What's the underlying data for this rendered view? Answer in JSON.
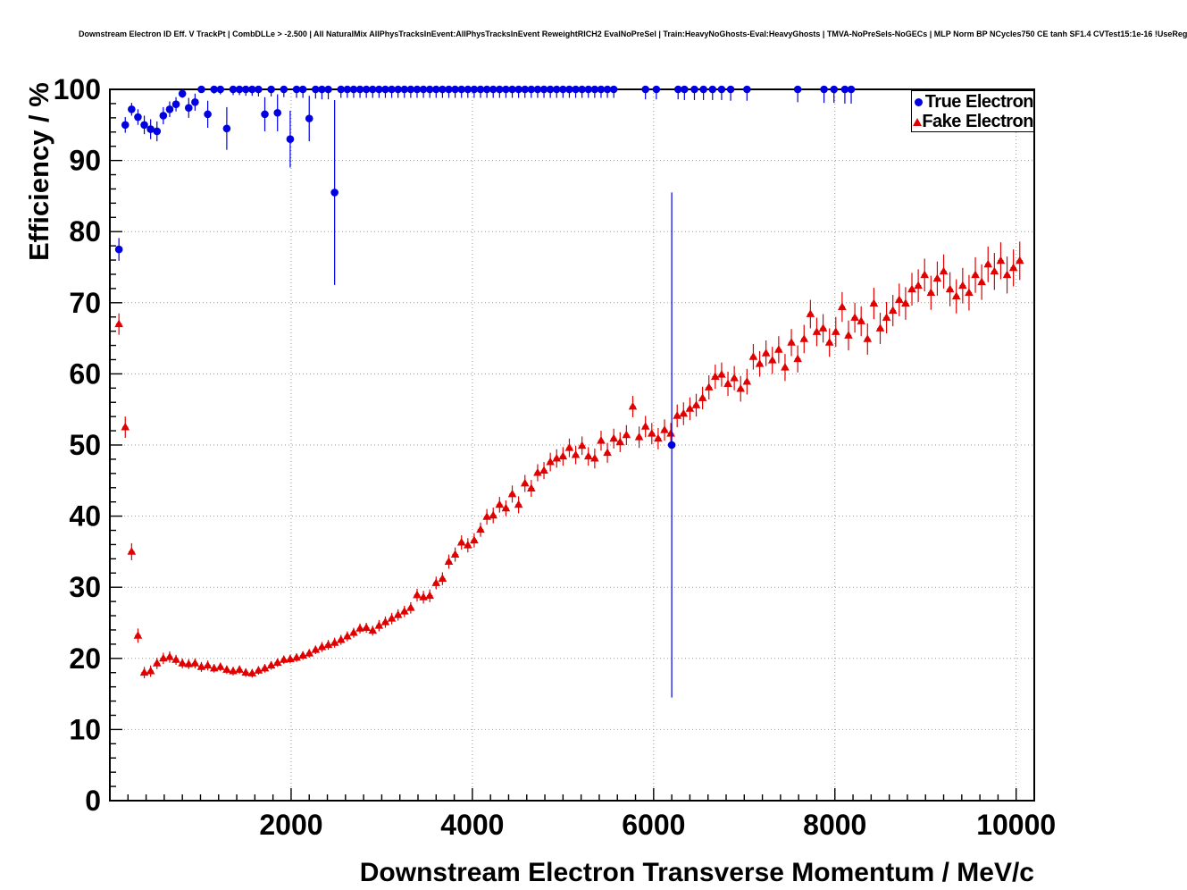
{
  "colors": {
    "true_electron": "#0000e0",
    "fake_electron": "#e00000",
    "grid": "#9a9a9a",
    "frame": "#000000",
    "background": "#ffffff"
  },
  "chart_data": {
    "type": "scatter",
    "title": "Downstream Electron ID Eff. V TrackPt | CombDLLe > -2.500 | All NaturalMix AllPhysTracksInEvent:AllPhysTracksInEvent ReweightRICH2 EvalNoPreSel | Train:HeavyNoGhosts-Eval:HeavyGhosts | TMVA-NoPreSels-NoGECs | MLP Norm BP NCycles750 CE tanh SF1.4 CVTest15:1e-16 !UseReg",
    "xlabel": "Downstream Electron Transverse Momentum / MeV/c",
    "ylabel": "Efficiency / %",
    "xlim": [
      0,
      10200
    ],
    "ylim": [
      0,
      100
    ],
    "x_ticks": [
      2000,
      4000,
      6000,
      8000,
      10000
    ],
    "y_ticks": [
      0,
      10,
      20,
      30,
      40,
      50,
      60,
      70,
      80,
      90,
      100
    ],
    "x_major_step": 2000,
    "x_minor_step": 200,
    "y_major_step": 10,
    "y_minor_step": 2,
    "grid_style": "dotted",
    "legend": {
      "position": "top-right",
      "entries": [
        {
          "label": "True Electron",
          "marker": "circle",
          "color": "#0000e0"
        },
        {
          "label": "Fake Electron",
          "marker": "triangle",
          "color": "#e00000"
        }
      ]
    },
    "series": [
      {
        "name": "True Electron",
        "marker": "circle",
        "color": "#0000e0",
        "x_error": 32,
        "points": [
          [
            100,
            77.5,
            1.6
          ],
          [
            170,
            95.0,
            1.1
          ],
          [
            240,
            97.2,
            0.9
          ],
          [
            310,
            96.1,
            1.1
          ],
          [
            380,
            95.0,
            1.3
          ],
          [
            450,
            94.4,
            1.4
          ],
          [
            520,
            94.1,
            1.4
          ],
          [
            590,
            96.3,
            1.2
          ],
          [
            660,
            97.2,
            1.1
          ],
          [
            730,
            97.9,
            1.0
          ],
          [
            800,
            99.4,
            0.6
          ],
          [
            870,
            97.4,
            1.4
          ],
          [
            940,
            98.2,
            1.2
          ],
          [
            1010,
            100,
            0.5
          ],
          [
            1080,
            96.5,
            1.9
          ],
          [
            1150,
            100,
            0.6
          ],
          [
            1220,
            100,
            0.7
          ],
          [
            1290,
            94.5,
            3.0
          ],
          [
            1360,
            100,
            0.8
          ],
          [
            1430,
            100,
            0.8
          ],
          [
            1500,
            100,
            0.9
          ],
          [
            1570,
            100,
            0.9
          ],
          [
            1640,
            100,
            1.0
          ],
          [
            1710,
            96.5,
            2.4
          ],
          [
            1780,
            100,
            1.0
          ],
          [
            1850,
            96.7,
            2.6
          ],
          [
            1920,
            100,
            1.1
          ],
          [
            1990,
            93.0,
            4.0
          ],
          [
            2060,
            100,
            1.2
          ],
          [
            2130,
            100,
            1.2
          ],
          [
            2200,
            95.9,
            3.2
          ],
          [
            2270,
            100,
            1.3
          ],
          [
            2340,
            100,
            1.4
          ],
          [
            2410,
            100,
            1.4
          ],
          [
            2480,
            85.5,
            13.0
          ],
          [
            2550,
            100,
            1.2
          ],
          [
            2620,
            100,
            1.2
          ],
          [
            2690,
            100,
            1.2
          ],
          [
            2760,
            100,
            1.2
          ],
          [
            2830,
            100,
            1.2
          ],
          [
            2900,
            100,
            1.2
          ],
          [
            2970,
            100,
            1.2
          ],
          [
            3040,
            100,
            1.2
          ],
          [
            3110,
            100,
            1.2
          ],
          [
            3180,
            100,
            1.2
          ],
          [
            3250,
            100,
            1.2
          ],
          [
            3320,
            100,
            1.2
          ],
          [
            3390,
            100,
            1.2
          ],
          [
            3460,
            100,
            1.2
          ],
          [
            3530,
            100,
            1.2
          ],
          [
            3600,
            100,
            1.2
          ],
          [
            3670,
            100,
            1.2
          ],
          [
            3740,
            100,
            1.2
          ],
          [
            3810,
            100,
            1.2
          ],
          [
            3880,
            100,
            1.2
          ],
          [
            3950,
            100,
            1.2
          ],
          [
            4020,
            100,
            1.2
          ],
          [
            4090,
            100,
            1.2
          ],
          [
            4160,
            100,
            1.2
          ],
          [
            4230,
            100,
            1.2
          ],
          [
            4300,
            100,
            1.2
          ],
          [
            4370,
            100,
            1.2
          ],
          [
            4440,
            100,
            1.2
          ],
          [
            4510,
            100,
            1.2
          ],
          [
            4580,
            100,
            1.2
          ],
          [
            4650,
            100,
            1.2
          ],
          [
            4720,
            100,
            1.2
          ],
          [
            4790,
            100,
            1.2
          ],
          [
            4860,
            100,
            1.2
          ],
          [
            4930,
            100,
            1.2
          ],
          [
            5000,
            100,
            1.2
          ],
          [
            5070,
            100,
            1.2
          ],
          [
            5140,
            100,
            1.2
          ],
          [
            5210,
            100,
            1.2
          ],
          [
            5280,
            100,
            1.2
          ],
          [
            5350,
            100,
            1.2
          ],
          [
            5420,
            100,
            1.2
          ],
          [
            5490,
            100,
            1.2
          ],
          [
            5560,
            100,
            1.2
          ],
          [
            5910,
            100,
            1.4
          ],
          [
            6030,
            100,
            1.4
          ],
          [
            6200,
            50.0,
            35.5
          ],
          [
            6270,
            100,
            1.4
          ],
          [
            6340,
            100,
            1.5
          ],
          [
            6450,
            100,
            1.5
          ],
          [
            6550,
            100,
            1.5
          ],
          [
            6650,
            100,
            1.5
          ],
          [
            6750,
            100,
            1.5
          ],
          [
            6850,
            100,
            1.6
          ],
          [
            7030,
            100,
            1.6
          ],
          [
            7590,
            100,
            1.8
          ],
          [
            7880,
            100,
            1.9
          ],
          [
            7990,
            100,
            1.9
          ],
          [
            8110,
            100,
            2.0
          ],
          [
            8180,
            100,
            2.0
          ]
        ]
      },
      {
        "name": "Fake Electron",
        "marker": "triangle",
        "color": "#e00000",
        "x_error": 32,
        "points": [
          [
            100,
            67.0,
            1.5
          ],
          [
            170,
            52.5,
            1.5
          ],
          [
            240,
            35.0,
            1.2
          ],
          [
            310,
            23.2,
            1.0
          ],
          [
            380,
            18.0,
            0.8
          ],
          [
            450,
            18.2,
            0.8
          ],
          [
            520,
            19.3,
            0.8
          ],
          [
            590,
            20.0,
            0.8
          ],
          [
            660,
            20.2,
            0.8
          ],
          [
            730,
            19.8,
            0.7
          ],
          [
            800,
            19.3,
            0.7
          ],
          [
            870,
            19.2,
            0.7
          ],
          [
            940,
            19.3,
            0.7
          ],
          [
            1010,
            18.8,
            0.7
          ],
          [
            1080,
            19.0,
            0.7
          ],
          [
            1150,
            18.6,
            0.6
          ],
          [
            1220,
            18.8,
            0.6
          ],
          [
            1290,
            18.4,
            0.6
          ],
          [
            1360,
            18.2,
            0.6
          ],
          [
            1430,
            18.4,
            0.6
          ],
          [
            1500,
            18.0,
            0.6
          ],
          [
            1570,
            17.9,
            0.6
          ],
          [
            1640,
            18.3,
            0.6
          ],
          [
            1710,
            18.6,
            0.6
          ],
          [
            1780,
            19.0,
            0.6
          ],
          [
            1850,
            19.4,
            0.6
          ],
          [
            1920,
            19.8,
            0.6
          ],
          [
            1990,
            19.9,
            0.6
          ],
          [
            2060,
            20.1,
            0.6
          ],
          [
            2130,
            20.4,
            0.6
          ],
          [
            2200,
            20.7,
            0.6
          ],
          [
            2270,
            21.2,
            0.6
          ],
          [
            2340,
            21.6,
            0.7
          ],
          [
            2410,
            21.9,
            0.7
          ],
          [
            2480,
            22.2,
            0.7
          ],
          [
            2550,
            22.6,
            0.7
          ],
          [
            2620,
            23.1,
            0.7
          ],
          [
            2690,
            23.6,
            0.7
          ],
          [
            2760,
            24.2,
            0.7
          ],
          [
            2830,
            24.3,
            0.7
          ],
          [
            2900,
            23.9,
            0.7
          ],
          [
            2970,
            24.6,
            0.8
          ],
          [
            3040,
            25.1,
            0.8
          ],
          [
            3110,
            25.6,
            0.8
          ],
          [
            3180,
            26.1,
            0.8
          ],
          [
            3250,
            26.6,
            0.8
          ],
          [
            3320,
            27.1,
            0.8
          ],
          [
            3390,
            28.9,
            0.9
          ],
          [
            3460,
            28.6,
            0.9
          ],
          [
            3530,
            28.8,
            0.9
          ],
          [
            3600,
            30.6,
            0.9
          ],
          [
            3670,
            31.2,
            0.9
          ],
          [
            3740,
            33.6,
            1.0
          ],
          [
            3810,
            34.6,
            1.0
          ],
          [
            3880,
            36.3,
            1.0
          ],
          [
            3950,
            35.9,
            1.0
          ],
          [
            4020,
            36.6,
            1.0
          ],
          [
            4090,
            38.1,
            1.0
          ],
          [
            4160,
            39.9,
            1.1
          ],
          [
            4230,
            40.1,
            1.1
          ],
          [
            4300,
            41.6,
            1.1
          ],
          [
            4370,
            41.1,
            1.1
          ],
          [
            4440,
            43.1,
            1.2
          ],
          [
            4510,
            41.6,
            1.2
          ],
          [
            4580,
            44.6,
            1.2
          ],
          [
            4650,
            43.9,
            1.2
          ],
          [
            4720,
            46.1,
            1.2
          ],
          [
            4790,
            46.4,
            1.2
          ],
          [
            4860,
            47.6,
            1.3
          ],
          [
            4930,
            48.1,
            1.3
          ],
          [
            5000,
            48.4,
            1.3
          ],
          [
            5070,
            49.6,
            1.3
          ],
          [
            5140,
            48.6,
            1.3
          ],
          [
            5210,
            49.9,
            1.3
          ],
          [
            5280,
            48.4,
            1.3
          ],
          [
            5350,
            48.1,
            1.4
          ],
          [
            5420,
            50.6,
            1.4
          ],
          [
            5490,
            48.9,
            1.4
          ],
          [
            5560,
            50.9,
            1.4
          ],
          [
            5630,
            50.4,
            1.4
          ],
          [
            5700,
            51.4,
            1.4
          ],
          [
            5770,
            55.4,
            1.5
          ],
          [
            5840,
            51.1,
            1.5
          ],
          [
            5910,
            52.6,
            1.5
          ],
          [
            5980,
            51.6,
            1.5
          ],
          [
            6050,
            50.9,
            1.5
          ],
          [
            6120,
            52.1,
            1.5
          ],
          [
            6190,
            51.6,
            1.5
          ],
          [
            6260,
            54.1,
            1.6
          ],
          [
            6330,
            54.4,
            1.6
          ],
          [
            6400,
            55.1,
            1.6
          ],
          [
            6470,
            55.6,
            1.6
          ],
          [
            6540,
            56.6,
            1.6
          ],
          [
            6610,
            58.1,
            1.7
          ],
          [
            6680,
            59.6,
            1.7
          ],
          [
            6750,
            59.9,
            1.7
          ],
          [
            6820,
            58.6,
            1.7
          ],
          [
            6890,
            59.4,
            1.7
          ],
          [
            6960,
            57.9,
            1.8
          ],
          [
            7030,
            58.9,
            1.8
          ],
          [
            7100,
            62.4,
            1.8
          ],
          [
            7170,
            61.4,
            1.8
          ],
          [
            7240,
            62.9,
            1.8
          ],
          [
            7310,
            61.9,
            1.9
          ],
          [
            7380,
            63.4,
            1.9
          ],
          [
            7450,
            60.9,
            1.9
          ],
          [
            7520,
            64.4,
            1.9
          ],
          [
            7590,
            62.1,
            1.9
          ],
          [
            7660,
            64.9,
            2.0
          ],
          [
            7730,
            68.4,
            2.0
          ],
          [
            7800,
            65.9,
            2.0
          ],
          [
            7870,
            66.4,
            2.0
          ],
          [
            7940,
            64.4,
            2.0
          ],
          [
            8010,
            65.9,
            2.1
          ],
          [
            8080,
            69.4,
            2.1
          ],
          [
            8150,
            65.4,
            2.1
          ],
          [
            8220,
            67.9,
            2.1
          ],
          [
            8290,
            67.4,
            2.1
          ],
          [
            8360,
            64.9,
            2.2
          ],
          [
            8430,
            69.9,
            2.2
          ],
          [
            8500,
            66.4,
            2.2
          ],
          [
            8570,
            67.9,
            2.2
          ],
          [
            8640,
            68.9,
            2.2
          ],
          [
            8710,
            70.4,
            2.3
          ],
          [
            8780,
            69.9,
            2.3
          ],
          [
            8850,
            71.9,
            2.3
          ],
          [
            8920,
            72.4,
            2.3
          ],
          [
            8990,
            73.9,
            2.3
          ],
          [
            9060,
            71.4,
            2.4
          ],
          [
            9130,
            73.4,
            2.4
          ],
          [
            9200,
            74.4,
            2.4
          ],
          [
            9270,
            71.9,
            2.4
          ],
          [
            9340,
            70.9,
            2.4
          ],
          [
            9410,
            72.4,
            2.5
          ],
          [
            9480,
            71.4,
            2.5
          ],
          [
            9550,
            73.9,
            2.5
          ],
          [
            9620,
            72.9,
            2.5
          ],
          [
            9690,
            75.4,
            2.5
          ],
          [
            9760,
            74.4,
            2.6
          ],
          [
            9830,
            75.9,
            2.6
          ],
          [
            9900,
            73.9,
            2.6
          ],
          [
            9970,
            74.9,
            2.6
          ],
          [
            10040,
            75.9,
            2.7
          ]
        ]
      }
    ]
  }
}
